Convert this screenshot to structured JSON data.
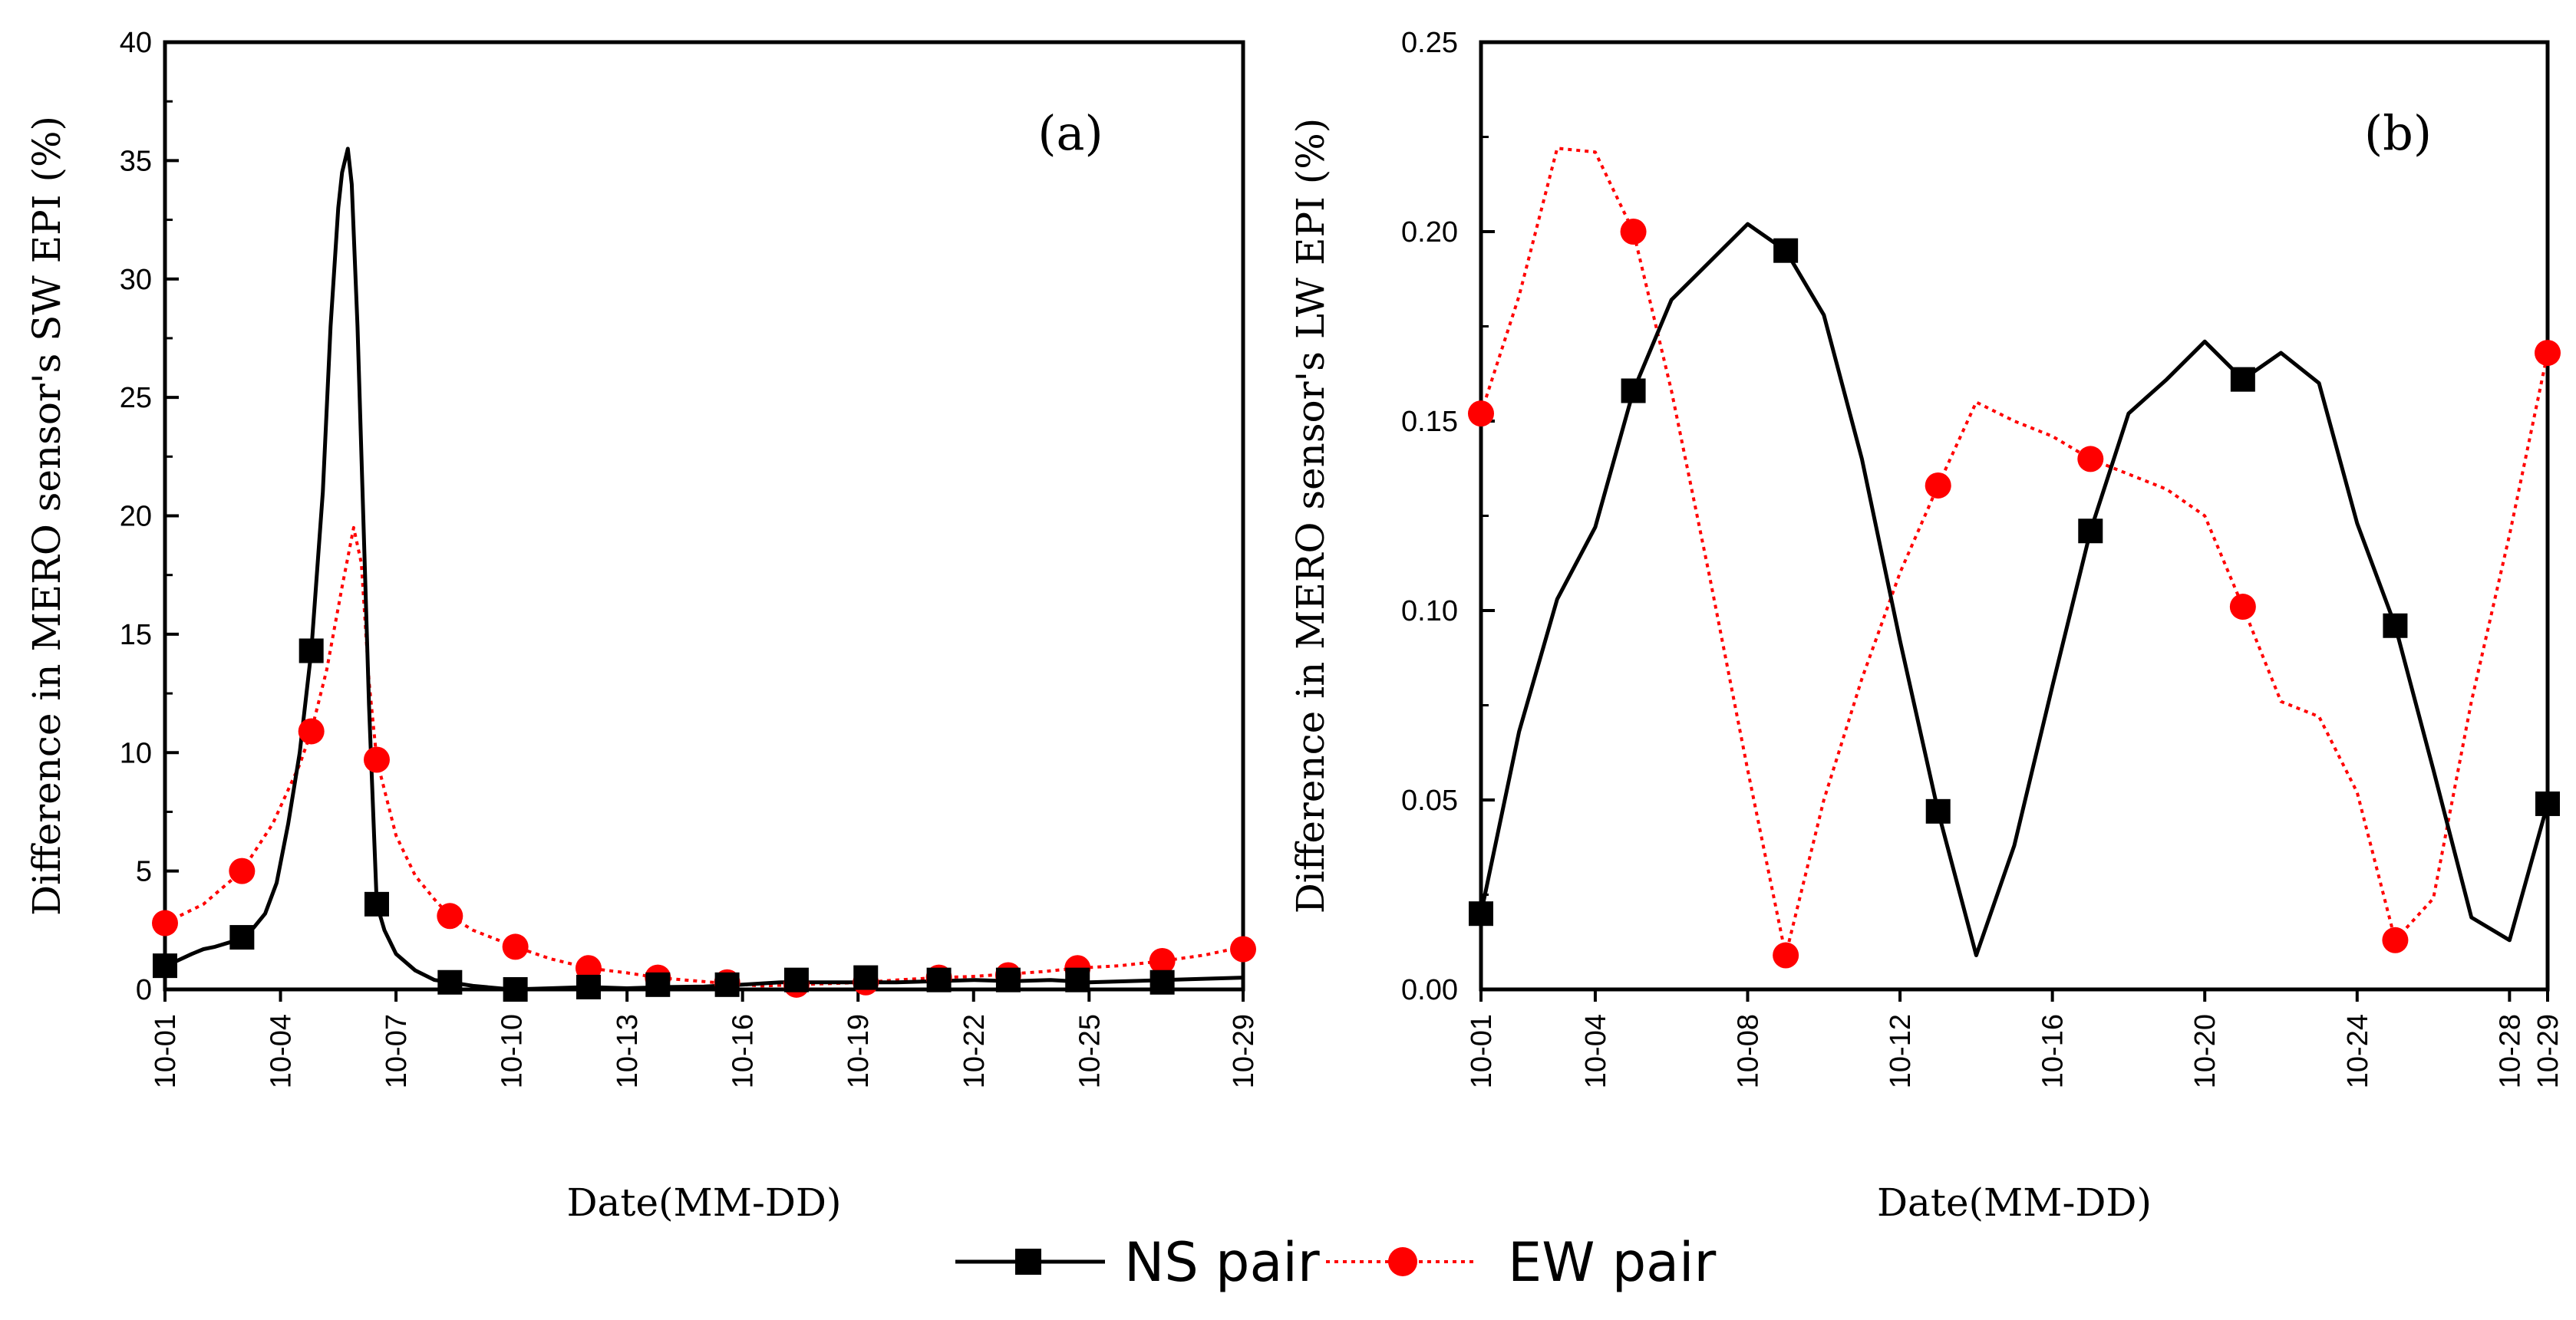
{
  "legend": {
    "items": [
      {
        "label": "NS pair",
        "color": "#000000",
        "marker": "square",
        "dash": "solid"
      },
      {
        "label": "EW pair",
        "color": "#ff0000",
        "marker": "circle",
        "dash": "dotted"
      }
    ]
  },
  "chart_data": [
    {
      "type": "line",
      "panel_label": "(a)",
      "xlabel": "Date(MM-DD)",
      "ylabel": "Difference in MERO sensor's SW EPI (%)",
      "xlim": [
        1,
        29
      ],
      "ylim": [
        0,
        40
      ],
      "xticks": [
        1,
        4,
        7,
        10,
        13,
        16,
        19,
        22,
        25,
        29
      ],
      "xtick_labels": [
        "10-01",
        "10-04",
        "10-07",
        "10-10",
        "10-13",
        "10-16",
        "10-19",
        "10-22",
        "10-25",
        "10-29"
      ],
      "yticks": [
        0,
        5,
        10,
        15,
        20,
        25,
        30,
        35,
        40
      ],
      "ytick_labels": [
        "0",
        "5",
        "10",
        "15",
        "20",
        "25",
        "30",
        "35",
        "40"
      ],
      "series": [
        {
          "name": "NS pair",
          "color": "#000000",
          "dash": "solid",
          "marker": "square",
          "points": [
            [
              1,
              1.0
            ],
            [
              1.3,
              1.2
            ],
            [
              1.7,
              1.5
            ],
            [
              2.0,
              1.7
            ],
            [
              2.3,
              1.8
            ],
            [
              2.7,
              2.0
            ],
            [
              3.0,
              2.3
            ],
            [
              3.3,
              2.6
            ],
            [
              3.6,
              3.2
            ],
            [
              3.9,
              4.5
            ],
            [
              4.2,
              7.0
            ],
            [
              4.5,
              10.0
            ],
            [
              4.8,
              14.3
            ],
            [
              5.1,
              21.0
            ],
            [
              5.3,
              28.0
            ],
            [
              5.5,
              33.0
            ],
            [
              5.6,
              34.5
            ],
            [
              5.75,
              35.5
            ],
            [
              5.85,
              34.0
            ],
            [
              6.0,
              28.0
            ],
            [
              6.15,
              20.0
            ],
            [
              6.3,
              12.0
            ],
            [
              6.5,
              3.6
            ],
            [
              6.7,
              2.5
            ],
            [
              7.0,
              1.5
            ],
            [
              7.5,
              0.8
            ],
            [
              8.0,
              0.4
            ],
            [
              8.4,
              0.3
            ],
            [
              9.0,
              0.15
            ],
            [
              10.0,
              0.0
            ],
            [
              11.0,
              0.05
            ],
            [
              12.0,
              0.1
            ],
            [
              13.0,
              0.05
            ],
            [
              14.0,
              0.1
            ],
            [
              15.0,
              0.12
            ],
            [
              16.0,
              0.2
            ],
            [
              17.0,
              0.3
            ],
            [
              18.0,
              0.3
            ],
            [
              19.0,
              0.3
            ],
            [
              20.0,
              0.3
            ],
            [
              21.0,
              0.35
            ],
            [
              22.0,
              0.4
            ],
            [
              23.0,
              0.35
            ],
            [
              24.0,
              0.4
            ],
            [
              25.0,
              0.3
            ],
            [
              26.0,
              0.35
            ],
            [
              27.0,
              0.4
            ],
            [
              28.0,
              0.45
            ],
            [
              29.0,
              0.5
            ]
          ],
          "marker_points": [
            [
              1.0,
              1.0
            ],
            [
              3.0,
              2.2
            ],
            [
              4.8,
              14.3
            ],
            [
              6.5,
              3.6
            ],
            [
              8.4,
              0.3
            ],
            [
              10.1,
              0.0
            ],
            [
              12.0,
              0.1
            ],
            [
              13.8,
              0.2
            ],
            [
              15.6,
              0.2
            ],
            [
              17.4,
              0.4
            ],
            [
              19.2,
              0.5
            ],
            [
              21.1,
              0.4
            ],
            [
              22.9,
              0.4
            ],
            [
              24.7,
              0.4
            ],
            [
              26.9,
              0.3
            ]
          ]
        },
        {
          "name": "EW pair",
          "color": "#ff0000",
          "dash": "dotted",
          "marker": "circle",
          "points": [
            [
              1,
              2.8
            ],
            [
              2.0,
              3.6
            ],
            [
              3.0,
              5.0
            ],
            [
              3.8,
              7.0
            ],
            [
              4.5,
              9.5
            ],
            [
              4.8,
              10.9
            ],
            [
              5.2,
              13.5
            ],
            [
              5.6,
              17.0
            ],
            [
              5.9,
              19.5
            ],
            [
              6.1,
              18.0
            ],
            [
              6.3,
              13.0
            ],
            [
              6.5,
              9.7
            ],
            [
              7.0,
              6.5
            ],
            [
              7.5,
              4.8
            ],
            [
              8.0,
              3.8
            ],
            [
              8.4,
              3.1
            ],
            [
              9.0,
              2.5
            ],
            [
              10.1,
              1.8
            ],
            [
              11.0,
              1.3
            ],
            [
              12.0,
              0.9
            ],
            [
              13.0,
              0.7
            ],
            [
              13.8,
              0.5
            ],
            [
              14.5,
              0.4
            ],
            [
              15.6,
              0.25
            ],
            [
              16.5,
              0.15
            ],
            [
              17.4,
              0.2
            ],
            [
              18.3,
              0.25
            ],
            [
              19.2,
              0.3
            ],
            [
              20.0,
              0.4
            ],
            [
              21.1,
              0.5
            ],
            [
              22.0,
              0.55
            ],
            [
              22.9,
              0.65
            ],
            [
              23.8,
              0.75
            ],
            [
              24.7,
              0.9
            ],
            [
              25.8,
              1.0
            ],
            [
              26.9,
              1.2
            ],
            [
              28.0,
              1.45
            ],
            [
              29.0,
              1.8
            ]
          ],
          "marker_points": [
            [
              1.0,
              2.8
            ],
            [
              3.0,
              5.0
            ],
            [
              4.8,
              10.9
            ],
            [
              6.5,
              9.7
            ],
            [
              8.4,
              3.1
            ],
            [
              10.1,
              1.8
            ],
            [
              12.0,
              0.9
            ],
            [
              13.8,
              0.5
            ],
            [
              15.6,
              0.3
            ],
            [
              17.4,
              0.2
            ],
            [
              19.2,
              0.3
            ],
            [
              21.1,
              0.5
            ],
            [
              22.9,
              0.6
            ],
            [
              24.7,
              0.9
            ],
            [
              26.9,
              1.2
            ],
            [
              29.0,
              1.7
            ]
          ]
        }
      ]
    },
    {
      "type": "line",
      "panel_label": "(b)",
      "xlabel": "Date(MM-DD)",
      "ylabel": "Difference in MERO sensor's LW EPI (%)",
      "xlim": [
        1,
        29
      ],
      "ylim": [
        0,
        0.25
      ],
      "xticks": [
        1,
        4,
        8,
        12,
        16,
        20,
        24,
        28,
        29
      ],
      "xtick_labels": [
        "10-01",
        "10-04",
        "10-08",
        "10-12",
        "10-16",
        "10-20",
        "10-24",
        "10-28",
        "10-29"
      ],
      "yticks": [
        0,
        0.05,
        0.1,
        0.15,
        0.2,
        0.25
      ],
      "ytick_labels": [
        "0.00",
        "0.05",
        "0.10",
        "0.15",
        "0.20",
        "0.25"
      ],
      "series": [
        {
          "name": "NS pair",
          "color": "#000000",
          "dash": "solid",
          "marker": "square",
          "points": [
            [
              1,
              0.02
            ],
            [
              2,
              0.068
            ],
            [
              3,
              0.103
            ],
            [
              4,
              0.122
            ],
            [
              5,
              0.158
            ],
            [
              6,
              0.182
            ],
            [
              7,
              0.192
            ],
            [
              8,
              0.202
            ],
            [
              9,
              0.195
            ],
            [
              10,
              0.178
            ],
            [
              11,
              0.14
            ],
            [
              12,
              0.092
            ],
            [
              13,
              0.047
            ],
            [
              14,
              0.009
            ],
            [
              15,
              0.038
            ],
            [
              16,
              0.08
            ],
            [
              17,
              0.121
            ],
            [
              18,
              0.152
            ],
            [
              19,
              0.161
            ],
            [
              20,
              0.171
            ],
            [
              21,
              0.161
            ],
            [
              22,
              0.168
            ],
            [
              23,
              0.16
            ],
            [
              24,
              0.123
            ],
            [
              25,
              0.096
            ],
            [
              26,
              0.058
            ],
            [
              27,
              0.019
            ],
            [
              28,
              0.013
            ],
            [
              29,
              0.049
            ]
          ],
          "marker_points": [
            [
              1,
              0.02
            ],
            [
              5,
              0.158
            ],
            [
              9,
              0.195
            ],
            [
              13,
              0.047
            ],
            [
              17,
              0.121
            ],
            [
              21,
              0.161
            ],
            [
              25,
              0.096
            ],
            [
              29,
              0.049
            ]
          ]
        },
        {
          "name": "EW pair",
          "color": "#ff0000",
          "dash": "dotted",
          "marker": "circle",
          "points": [
            [
              1,
              0.152
            ],
            [
              2,
              0.183
            ],
            [
              3,
              0.222
            ],
            [
              4,
              0.221
            ],
            [
              5,
              0.2
            ],
            [
              6,
              0.158
            ],
            [
              7,
              0.109
            ],
            [
              8,
              0.058
            ],
            [
              9,
              0.009
            ],
            [
              10,
              0.05
            ],
            [
              11,
              0.082
            ],
            [
              12,
              0.11
            ],
            [
              13,
              0.133
            ],
            [
              14,
              0.155
            ],
            [
              15,
              0.15
            ],
            [
              16,
              0.146
            ],
            [
              17,
              0.14
            ],
            [
              18,
              0.136
            ],
            [
              19,
              0.132
            ],
            [
              20,
              0.125
            ],
            [
              21,
              0.101
            ],
            [
              22,
              0.076
            ],
            [
              23,
              0.072
            ],
            [
              24,
              0.052
            ],
            [
              25,
              0.013
            ],
            [
              26,
              0.024
            ],
            [
              27,
              0.076
            ],
            [
              28,
              0.12
            ],
            [
              29,
              0.168
            ]
          ],
          "marker_points": [
            [
              1,
              0.152
            ],
            [
              5,
              0.2
            ],
            [
              9,
              0.009
            ],
            [
              13,
              0.133
            ],
            [
              17,
              0.14
            ],
            [
              21,
              0.101
            ],
            [
              25,
              0.013
            ],
            [
              29,
              0.168
            ]
          ]
        }
      ]
    }
  ]
}
